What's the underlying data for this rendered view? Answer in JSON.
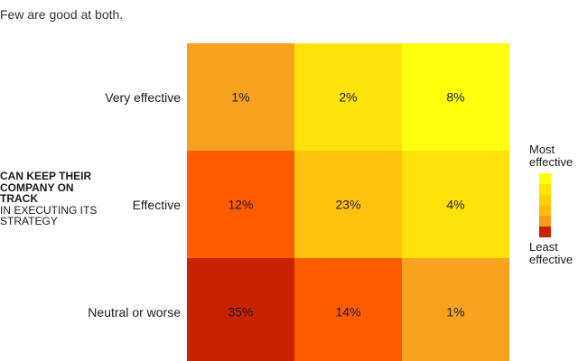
{
  "subtitle": "Few are good at both.",
  "y_title": {
    "bold": "CAN KEEP THEIR COMPANY ON TRACK",
    "normal": "IN EXECUTING ITS STRATEGY"
  },
  "legend": {
    "top_label": "Most effective",
    "bottom_label": "Least effective",
    "colors": [
      "#ffff00",
      "#ffe500",
      "#ffd000",
      "#fdbb11",
      "#f89a1c",
      "#c92200"
    ]
  },
  "chart_data": {
    "type": "heatmap",
    "row_labels": [
      "Very effective",
      "Effective",
      "Neutral or worse"
    ],
    "column_count": 3,
    "values": [
      [
        "1%",
        "2%",
        "8%"
      ],
      [
        "12%",
        "23%",
        "4%"
      ],
      [
        "35%",
        "14%",
        "1%"
      ]
    ],
    "colors": [
      [
        "#f9a21f",
        "#fee20a",
        "#ffff0e"
      ],
      [
        "#ff5c00",
        "#fec20f",
        "#fee20a"
      ],
      [
        "#c92200",
        "#ff5c00",
        "#f9a21f"
      ]
    ]
  }
}
